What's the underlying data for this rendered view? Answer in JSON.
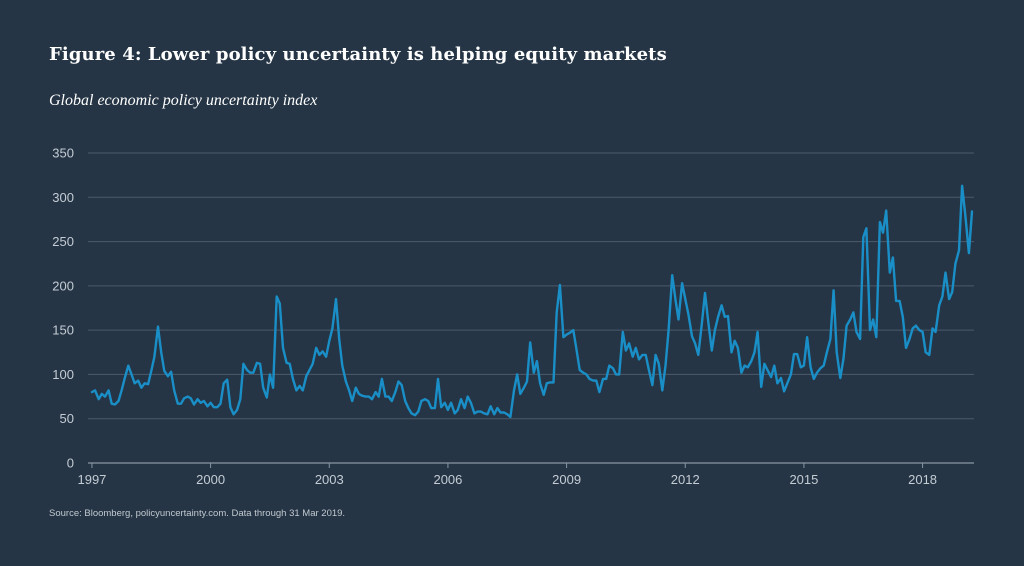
{
  "title": "Figure 4: Lower policy uncertainty is helping equity markets",
  "subtitle": "Global economic policy uncertainty index",
  "source": "Source: Bloomberg, policyuncertainty.com. Data through 31 Mar 2019.",
  "colors": {
    "background": "#253545",
    "line": "#1a8fc7",
    "text": "#ffffff"
  },
  "chart_data": {
    "type": "line",
    "ylim": [
      0,
      350
    ],
    "yticks": [
      0,
      50,
      100,
      150,
      200,
      250,
      300,
      350
    ],
    "xlim": [
      1996.9,
      2019.3
    ],
    "xticks": [
      1997,
      2000,
      2003,
      2006,
      2009,
      2012,
      2015,
      2018
    ],
    "grid": true,
    "series": [
      {
        "points": [
          [
            1997.0,
            80
          ],
          [
            1997.08,
            82
          ],
          [
            1997.17,
            72
          ],
          [
            1997.25,
            78
          ],
          [
            1997.33,
            75
          ],
          [
            1997.42,
            82
          ],
          [
            1997.5,
            67
          ],
          [
            1997.58,
            66
          ],
          [
            1997.67,
            70
          ],
          [
            1997.75,
            82
          ],
          [
            1997.83,
            96
          ],
          [
            1997.92,
            110
          ],
          [
            1998.0,
            100
          ],
          [
            1998.08,
            90
          ],
          [
            1998.17,
            93
          ],
          [
            1998.25,
            85
          ],
          [
            1998.33,
            90
          ],
          [
            1998.42,
            89
          ],
          [
            1998.5,
            104
          ],
          [
            1998.58,
            120
          ],
          [
            1998.67,
            154
          ],
          [
            1998.75,
            125
          ],
          [
            1998.83,
            104
          ],
          [
            1998.92,
            98
          ],
          [
            1999.0,
            103
          ],
          [
            1999.08,
            82
          ],
          [
            1999.17,
            67
          ],
          [
            1999.25,
            67
          ],
          [
            1999.33,
            73
          ],
          [
            1999.42,
            75
          ],
          [
            1999.5,
            73
          ],
          [
            1999.58,
            66
          ],
          [
            1999.67,
            72
          ],
          [
            1999.75,
            68
          ],
          [
            1999.83,
            70
          ],
          [
            1999.92,
            64
          ],
          [
            2000.0,
            68
          ],
          [
            2000.08,
            63
          ],
          [
            2000.17,
            63
          ],
          [
            2000.25,
            67
          ],
          [
            2000.33,
            90
          ],
          [
            2000.42,
            94
          ],
          [
            2000.5,
            63
          ],
          [
            2000.58,
            55
          ],
          [
            2000.67,
            60
          ],
          [
            2000.75,
            72
          ],
          [
            2000.83,
            112
          ],
          [
            2000.92,
            105
          ],
          [
            2001.0,
            102
          ],
          [
            2001.08,
            102
          ],
          [
            2001.17,
            113
          ],
          [
            2001.25,
            112
          ],
          [
            2001.33,
            85
          ],
          [
            2001.42,
            74
          ],
          [
            2001.5,
            100
          ],
          [
            2001.58,
            85
          ],
          [
            2001.67,
            188
          ],
          [
            2001.75,
            180
          ],
          [
            2001.83,
            130
          ],
          [
            2001.92,
            113
          ],
          [
            2002.0,
            112
          ],
          [
            2002.08,
            95
          ],
          [
            2002.17,
            82
          ],
          [
            2002.25,
            87
          ],
          [
            2002.33,
            82
          ],
          [
            2002.42,
            98
          ],
          [
            2002.5,
            105
          ],
          [
            2002.58,
            112
          ],
          [
            2002.67,
            130
          ],
          [
            2002.75,
            122
          ],
          [
            2002.83,
            126
          ],
          [
            2002.92,
            120
          ],
          [
            2003.0,
            138
          ],
          [
            2003.08,
            152
          ],
          [
            2003.17,
            185
          ],
          [
            2003.25,
            140
          ],
          [
            2003.33,
            110
          ],
          [
            2003.42,
            92
          ],
          [
            2003.5,
            82
          ],
          [
            2003.58,
            70
          ],
          [
            2003.67,
            85
          ],
          [
            2003.75,
            78
          ],
          [
            2003.83,
            76
          ],
          [
            2003.92,
            75
          ],
          [
            2004.0,
            75
          ],
          [
            2004.08,
            72
          ],
          [
            2004.17,
            80
          ],
          [
            2004.25,
            75
          ],
          [
            2004.33,
            95
          ],
          [
            2004.42,
            75
          ],
          [
            2004.5,
            75
          ],
          [
            2004.58,
            70
          ],
          [
            2004.67,
            80
          ],
          [
            2004.75,
            92
          ],
          [
            2004.83,
            88
          ],
          [
            2004.92,
            70
          ],
          [
            2005.0,
            62
          ],
          [
            2005.08,
            56
          ],
          [
            2005.17,
            54
          ],
          [
            2005.25,
            58
          ],
          [
            2005.33,
            70
          ],
          [
            2005.42,
            72
          ],
          [
            2005.5,
            70
          ],
          [
            2005.58,
            62
          ],
          [
            2005.67,
            62
          ],
          [
            2005.75,
            95
          ],
          [
            2005.83,
            63
          ],
          [
            2005.92,
            68
          ],
          [
            2006.0,
            60
          ],
          [
            2006.08,
            68
          ],
          [
            2006.17,
            56
          ],
          [
            2006.25,
            60
          ],
          [
            2006.33,
            72
          ],
          [
            2006.42,
            62
          ],
          [
            2006.5,
            75
          ],
          [
            2006.58,
            68
          ],
          [
            2006.67,
            56
          ],
          [
            2006.75,
            58
          ],
          [
            2006.83,
            58
          ],
          [
            2006.92,
            56
          ],
          [
            2007.0,
            55
          ],
          [
            2007.08,
            64
          ],
          [
            2007.17,
            55
          ],
          [
            2007.25,
            62
          ],
          [
            2007.33,
            57
          ],
          [
            2007.42,
            57
          ],
          [
            2007.5,
            55
          ],
          [
            2007.58,
            52
          ],
          [
            2007.67,
            82
          ],
          [
            2007.75,
            100
          ],
          [
            2007.83,
            78
          ],
          [
            2007.92,
            85
          ],
          [
            2008.0,
            92
          ],
          [
            2008.08,
            136
          ],
          [
            2008.17,
            102
          ],
          [
            2008.25,
            115
          ],
          [
            2008.33,
            90
          ],
          [
            2008.42,
            77
          ],
          [
            2008.5,
            90
          ],
          [
            2008.58,
            91
          ],
          [
            2008.67,
            91
          ],
          [
            2008.75,
            170
          ],
          [
            2008.83,
            201
          ],
          [
            2008.92,
            142
          ],
          [
            2009.0,
            145
          ],
          [
            2009.08,
            147
          ],
          [
            2009.17,
            150
          ],
          [
            2009.25,
            128
          ],
          [
            2009.33,
            105
          ],
          [
            2009.42,
            102
          ],
          [
            2009.5,
            100
          ],
          [
            2009.58,
            95
          ],
          [
            2009.67,
            93
          ],
          [
            2009.75,
            93
          ],
          [
            2009.83,
            80
          ],
          [
            2009.92,
            95
          ],
          [
            2010.0,
            95
          ],
          [
            2010.08,
            110
          ],
          [
            2010.17,
            107
          ],
          [
            2010.25,
            100
          ],
          [
            2010.33,
            100
          ],
          [
            2010.42,
            148
          ],
          [
            2010.5,
            127
          ],
          [
            2010.58,
            135
          ],
          [
            2010.67,
            120
          ],
          [
            2010.75,
            130
          ],
          [
            2010.83,
            117
          ],
          [
            2010.92,
            122
          ],
          [
            2011.0,
            122
          ],
          [
            2011.08,
            105
          ],
          [
            2011.17,
            88
          ],
          [
            2011.25,
            122
          ],
          [
            2011.33,
            112
          ],
          [
            2011.42,
            82
          ],
          [
            2011.5,
            110
          ],
          [
            2011.58,
            150
          ],
          [
            2011.67,
            212
          ],
          [
            2011.75,
            185
          ],
          [
            2011.83,
            162
          ],
          [
            2011.92,
            203
          ],
          [
            2012.0,
            185
          ],
          [
            2012.08,
            168
          ],
          [
            2012.17,
            143
          ],
          [
            2012.25,
            135
          ],
          [
            2012.33,
            122
          ],
          [
            2012.42,
            158
          ],
          [
            2012.5,
            192
          ],
          [
            2012.58,
            160
          ],
          [
            2012.67,
            127
          ],
          [
            2012.75,
            150
          ],
          [
            2012.83,
            165
          ],
          [
            2012.92,
            178
          ],
          [
            2013.0,
            165
          ],
          [
            2013.08,
            166
          ],
          [
            2013.17,
            125
          ],
          [
            2013.25,
            138
          ],
          [
            2013.33,
            130
          ],
          [
            2013.42,
            102
          ],
          [
            2013.5,
            110
          ],
          [
            2013.58,
            108
          ],
          [
            2013.67,
            115
          ],
          [
            2013.75,
            125
          ],
          [
            2013.83,
            148
          ],
          [
            2013.92,
            86
          ],
          [
            2014.0,
            112
          ],
          [
            2014.08,
            105
          ],
          [
            2014.17,
            97
          ],
          [
            2014.25,
            110
          ],
          [
            2014.33,
            90
          ],
          [
            2014.42,
            96
          ],
          [
            2014.5,
            81
          ],
          [
            2014.58,
            90
          ],
          [
            2014.67,
            100
          ],
          [
            2014.75,
            123
          ],
          [
            2014.83,
            123
          ],
          [
            2014.92,
            108
          ],
          [
            2015.0,
            110
          ],
          [
            2015.08,
            142
          ],
          [
            2015.17,
            108
          ],
          [
            2015.25,
            95
          ],
          [
            2015.33,
            102
          ],
          [
            2015.42,
            107
          ],
          [
            2015.5,
            110
          ],
          [
            2015.58,
            125
          ],
          [
            2015.67,
            140
          ],
          [
            2015.75,
            195
          ],
          [
            2015.83,
            125
          ],
          [
            2015.92,
            96
          ],
          [
            2016.0,
            118
          ],
          [
            2016.08,
            155
          ],
          [
            2016.17,
            162
          ],
          [
            2016.25,
            170
          ],
          [
            2016.33,
            148
          ],
          [
            2016.42,
            140
          ],
          [
            2016.5,
            255
          ],
          [
            2016.58,
            265
          ],
          [
            2016.67,
            150
          ],
          [
            2016.75,
            162
          ],
          [
            2016.83,
            142
          ],
          [
            2016.92,
            272
          ],
          [
            2017.0,
            260
          ],
          [
            2017.08,
            285
          ],
          [
            2017.17,
            215
          ],
          [
            2017.25,
            232
          ],
          [
            2017.33,
            183
          ],
          [
            2017.42,
            183
          ],
          [
            2017.5,
            165
          ],
          [
            2017.58,
            130
          ],
          [
            2017.67,
            140
          ],
          [
            2017.75,
            152
          ],
          [
            2017.83,
            155
          ],
          [
            2017.92,
            150
          ],
          [
            2018.0,
            148
          ],
          [
            2018.08,
            125
          ],
          [
            2018.17,
            122
          ],
          [
            2018.25,
            152
          ],
          [
            2018.33,
            148
          ],
          [
            2018.42,
            178
          ],
          [
            2018.5,
            188
          ],
          [
            2018.58,
            215
          ],
          [
            2018.67,
            185
          ],
          [
            2018.75,
            193
          ],
          [
            2018.83,
            225
          ],
          [
            2018.92,
            240
          ],
          [
            2019.0,
            313
          ],
          [
            2019.08,
            280
          ],
          [
            2019.17,
            237
          ],
          [
            2019.25,
            284
          ]
        ]
      }
    ]
  }
}
